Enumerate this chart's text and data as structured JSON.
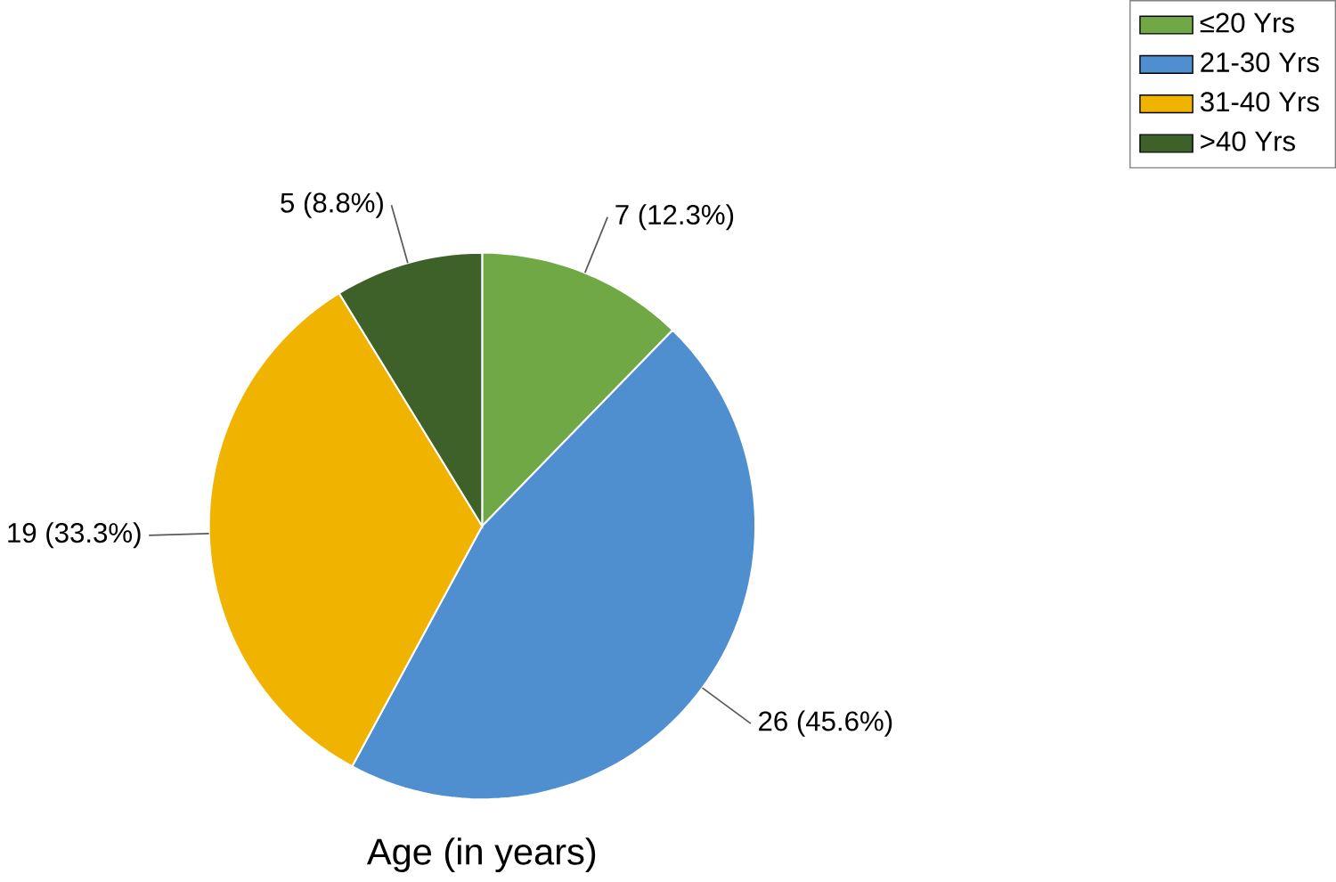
{
  "chart_data": {
    "type": "pie",
    "title": "Age (in years)",
    "categories": [
      "≤20 Yrs",
      "21-30 Yrs",
      "31-40 Yrs",
      ">40 Yrs"
    ],
    "values": [
      7,
      26,
      19,
      5
    ],
    "colors": [
      "#70a845",
      "#4f8fd0",
      "#f0b400",
      "#3d6128"
    ],
    "value_labels": [
      "7 (12.3%)",
      "26 (45.6%)",
      "19 (33.3%)",
      "5 (8.8%)"
    ],
    "legend": "top right"
  }
}
